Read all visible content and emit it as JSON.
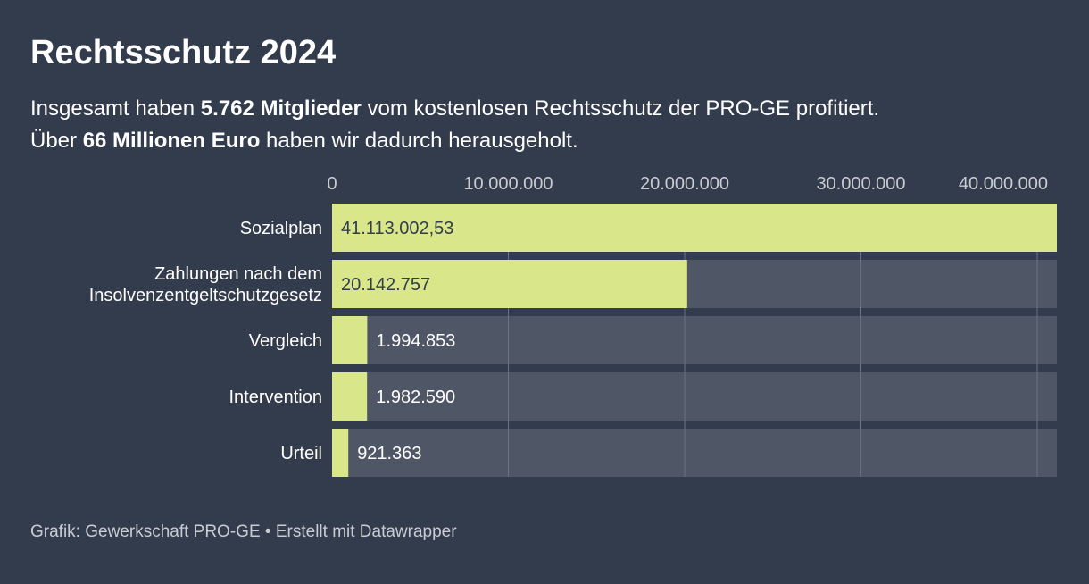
{
  "title": "Rechtsschutz 2024",
  "subtitle": {
    "line1_pre": "Insgesamt haben ",
    "line1_bold": "5.762 Mitglieder",
    "line1_post": " vom kostenlosen Rechtsschutz der PRO-GE profitiert.",
    "line2_pre": "Über ",
    "line2_bold": "66 Millionen Euro",
    "line2_post": " haben wir dadurch herausgeholt."
  },
  "footer": {
    "source": "Grafik: Gewerkschaft PRO-GE",
    "separator": "•",
    "credit": "Erstellt mit Datawrapper"
  },
  "colors": {
    "background": "#333c4d",
    "bar": "#d9e78a",
    "track": "#4f5766",
    "gridline": "#6b7382",
    "tick_text": "#c9ccd2"
  },
  "chart_data": {
    "type": "bar",
    "orientation": "horizontal",
    "categories": [
      [
        "Sozialplan"
      ],
      [
        "Zahlungen nach dem",
        "Insolvenzentgeltschutzgesetz"
      ],
      [
        "Vergleich"
      ],
      [
        "Intervention"
      ],
      [
        "Urteil"
      ]
    ],
    "values": [
      41113002.53,
      20142757,
      1994853,
      1982590,
      921363
    ],
    "value_labels": [
      "41.113.002,53",
      "20.142.757",
      "1.994.853",
      "1.982.590",
      "921.363"
    ],
    "xlim": [
      0,
      41113002.53
    ],
    "ticks": [
      {
        "value": 0,
        "label": "0"
      },
      {
        "value": 10000000,
        "label": "10.000.000"
      },
      {
        "value": 20000000,
        "label": "20.000.000"
      },
      {
        "value": 30000000,
        "label": "30.000.000"
      },
      {
        "value": 40000000,
        "label": "40.000.000"
      }
    ],
    "title": "Rechtsschutz 2024",
    "xlabel": "",
    "ylabel": ""
  }
}
